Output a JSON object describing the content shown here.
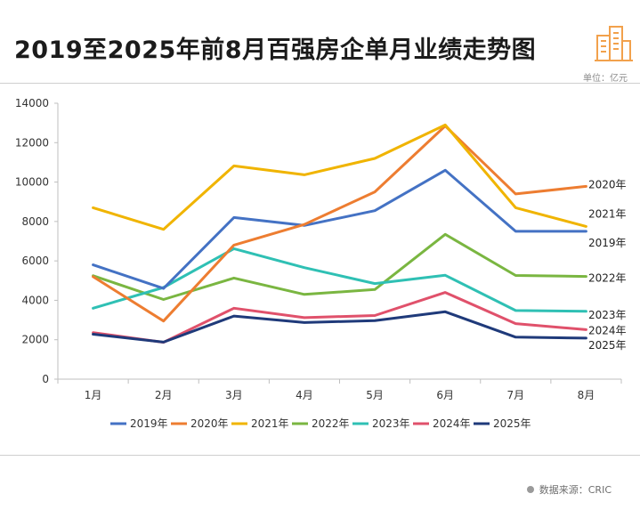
{
  "header": {
    "title": "2019至2025年前8月百强房企单月业绩走势图",
    "unit": "单位：亿元"
  },
  "footer": {
    "source": "数据来源：CRIC"
  },
  "colors": {
    "2019年": "#4472c4",
    "2020年": "#ed7d31",
    "2021年": "#f0b400",
    "2022年": "#7ab641",
    "2023年": "#2fc0b4",
    "2024年": "#e0516b",
    "2025年": "#1f3a7a",
    "logo": "#f2a14c"
  },
  "chart_data": {
    "type": "line",
    "categories": [
      "1月",
      "2月",
      "3月",
      "4月",
      "5月",
      "6月",
      "7月",
      "8月"
    ],
    "ylim": [
      0,
      14000
    ],
    "yticks": [
      0,
      2000,
      4000,
      6000,
      8000,
      10000,
      12000,
      14000
    ],
    "legend_position": "bottom",
    "series": [
      {
        "name": "2019年",
        "values": [
          5800,
          4600,
          8200,
          7800,
          8550,
          10600,
          7500,
          7500
        ]
      },
      {
        "name": "2020年",
        "values": [
          5200,
          2950,
          6800,
          7850,
          9500,
          12850,
          9400,
          9780
        ]
      },
      {
        "name": "2021年",
        "values": [
          8700,
          7600,
          10820,
          10370,
          11200,
          12900,
          8700,
          7750
        ]
      },
      {
        "name": "2022年",
        "values": [
          5250,
          4040,
          5130,
          4300,
          4550,
          7350,
          5260,
          5210
        ]
      },
      {
        "name": "2023年",
        "values": [
          3600,
          4650,
          6620,
          5660,
          4850,
          5270,
          3480,
          3440
        ]
      },
      {
        "name": "2024年",
        "values": [
          2360,
          1870,
          3600,
          3120,
          3230,
          4400,
          2820,
          2510
        ]
      },
      {
        "name": "2025年",
        "values": [
          2280,
          1880,
          3200,
          2870,
          2970,
          3420,
          2130,
          2080
        ]
      }
    ],
    "end_labels": [
      {
        "series": "2020年",
        "text": "2020年"
      },
      {
        "series": "2021年",
        "text": "2021年"
      },
      {
        "series": "2019年",
        "text": "2019年"
      },
      {
        "series": "2022年",
        "text": "2022年"
      },
      {
        "series": "2023年",
        "text": "2023年"
      },
      {
        "series": "2024年",
        "text": "2024年"
      },
      {
        "series": "2025年",
        "text": "2025年"
      }
    ]
  }
}
